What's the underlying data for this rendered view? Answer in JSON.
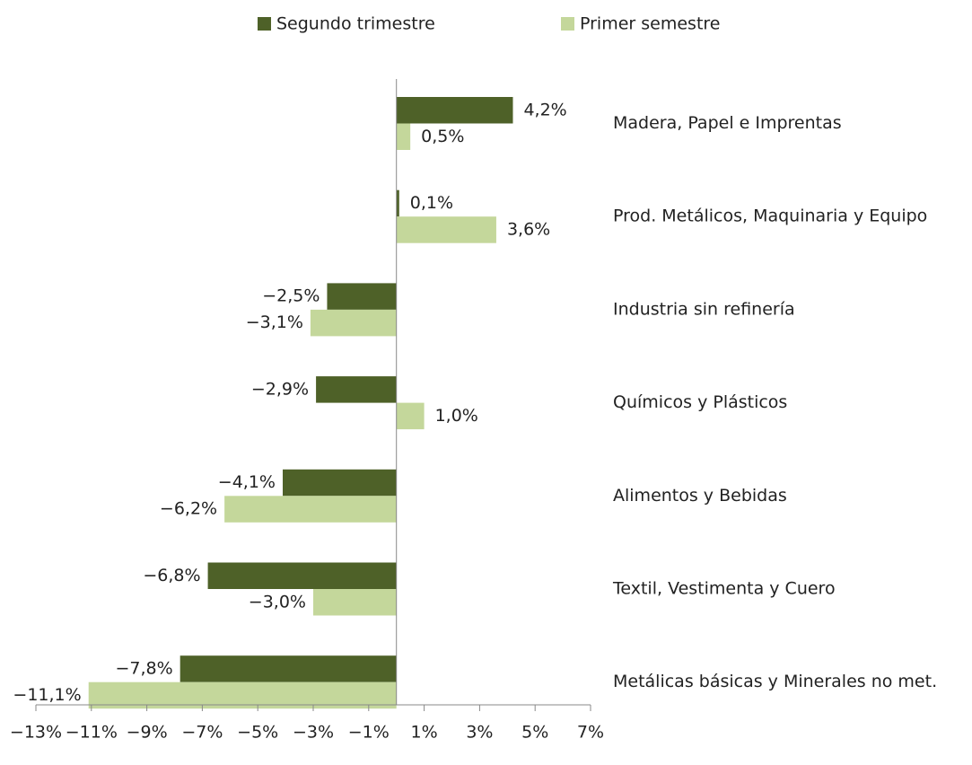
{
  "chart_data": {
    "type": "hbar",
    "categories": [
      "Madera, Papel e Imprentas",
      "Prod. Metálicos, Maquinaria y Equipo",
      "Industria sin refinería",
      "Químicos y Plásticos",
      "Alimentos y Bebidas",
      "Textil, Vestimenta y Cuero",
      "Metálicas básicas y Minerales no met."
    ],
    "series": [
      {
        "name": "Segundo trimestre",
        "color": "#4e6128",
        "values": [
          4.2,
          0.1,
          -2.5,
          -2.9,
          -4.1,
          -6.8,
          -7.8
        ],
        "value_labels": [
          "4,2%",
          "0,1%",
          "−2,5%",
          "−2,9%",
          "−4,1%",
          "−6,8%",
          "−7,8%"
        ]
      },
      {
        "name": "Primer semestre",
        "color": "#c4d79b",
        "values": [
          0.5,
          3.6,
          -3.1,
          1.0,
          -6.2,
          -3.0,
          -11.1
        ],
        "value_labels": [
          "0,5%",
          "3,6%",
          "−3,1%",
          "1,0%",
          "−6,2%",
          "−3,0%",
          "−11,1%"
        ]
      }
    ],
    "xlim": [
      -13,
      7
    ],
    "xticks": [
      {
        "value": -13,
        "label": "−13%"
      },
      {
        "value": -11,
        "label": "−11%"
      },
      {
        "value": -9,
        "label": "−9%"
      },
      {
        "value": -7,
        "label": "−7%"
      },
      {
        "value": -5,
        "label": "−5%"
      },
      {
        "value": -3,
        "label": "−3%"
      },
      {
        "value": -1,
        "label": "−1%"
      },
      {
        "value": 1,
        "label": "1%"
      },
      {
        "value": 3,
        "label": "3%"
      },
      {
        "value": 5,
        "label": "5%"
      },
      {
        "value": 7,
        "label": "7%"
      }
    ],
    "legend": "top",
    "grid": false
  }
}
